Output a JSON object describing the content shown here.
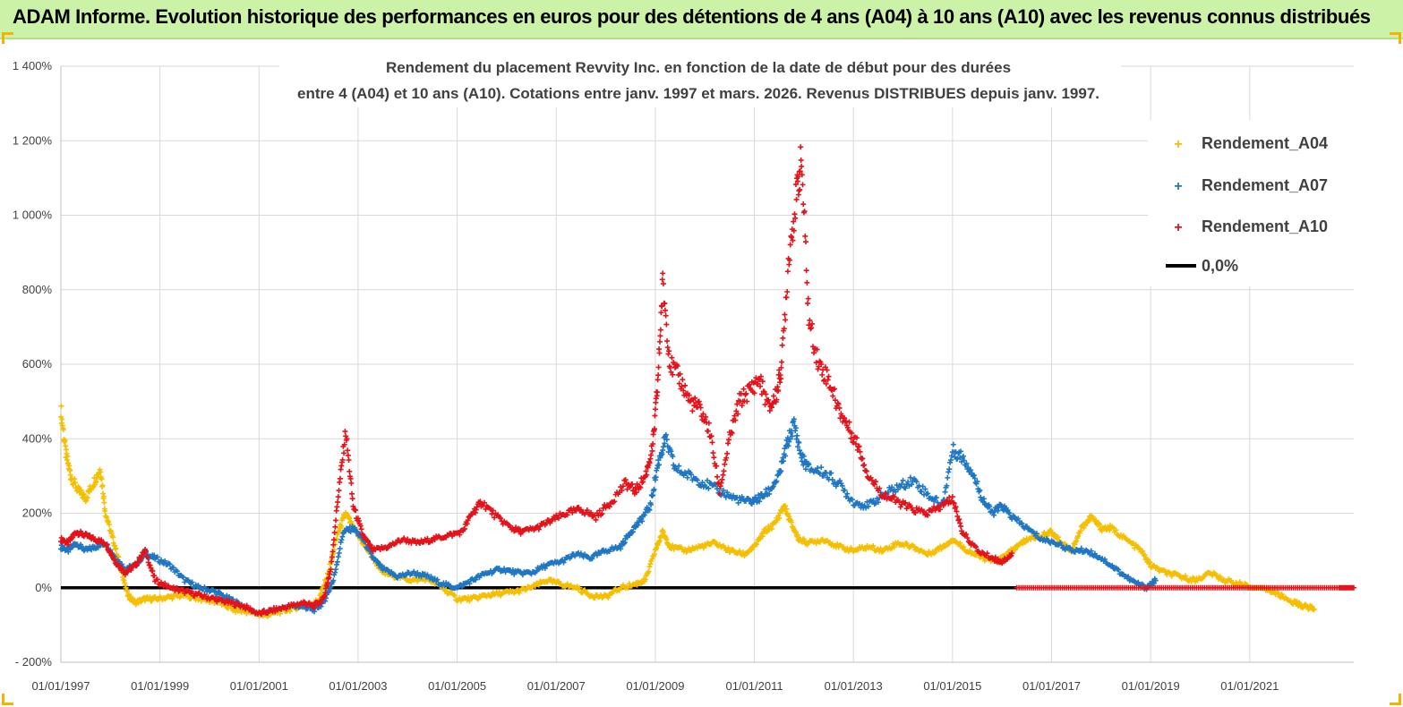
{
  "header": {
    "title": "ADAM Informe. Evolution historique des performances en euros pour des détentions de 4 ans (A04) à 10 ans (A10) avec les revenus connus distribués"
  },
  "chart_data": {
    "type": "scatter",
    "title_lines": [
      "Rendement du placement Revvity Inc. en fonction de la date de début pour des durées",
      "entre 4 (A04) et 10 ans (A10).  Cotations entre janv. 1997 et mars. 2026. Revenus DISTRIBUES depuis janv. 1997."
    ],
    "xlim": [
      1997.0,
      2023.1
    ],
    "ylim": [
      -200,
      1400
    ],
    "ytick_values": [
      -200,
      0,
      200,
      400,
      600,
      800,
      1000,
      1200,
      1400
    ],
    "ytick_labels": [
      "- 200%",
      "0%",
      "200%",
      "400%",
      "600%",
      "800%",
      "1 000%",
      "1 200%",
      "1 400%"
    ],
    "xtick_values": [
      1997,
      1999,
      2001,
      2003,
      2005,
      2007,
      2009,
      2011,
      2013,
      2015,
      2017,
      2019,
      2021
    ],
    "xtick_labels": [
      "01/01/1997",
      "01/01/1999",
      "01/01/2001",
      "01/01/2003",
      "01/01/2005",
      "01/01/2007",
      "01/01/2009",
      "01/01/2011",
      "01/01/2013",
      "01/01/2015",
      "01/01/2017",
      "01/01/2019",
      "01/01/2021"
    ],
    "grid": true,
    "legend_position": "top-right",
    "legend": [
      "Rendement_A04",
      "Rendement_A07",
      "Rendement_A10",
      "0,0%"
    ],
    "series": [
      {
        "name": "Rendement_A04",
        "color": "#f5bf00",
        "x": [
          1997.0,
          1997.1,
          1997.2,
          1997.35,
          1997.5,
          1997.65,
          1997.8,
          1997.9,
          1998.05,
          1998.2,
          1998.35,
          1998.5,
          1998.7,
          1998.9,
          1999.2,
          1999.5,
          1999.8,
          2000.2,
          2000.5,
          2000.8,
          2001.1,
          2001.4,
          2001.7,
          2002.0,
          2002.2,
          2002.4,
          2002.6,
          2002.75,
          2002.9,
          2003.1,
          2003.3,
          2003.5,
          2003.8,
          2004.1,
          2004.4,
          2004.7,
          2005.0,
          2005.3,
          2005.6,
          2005.9,
          2006.2,
          2006.5,
          2006.8,
          2007.1,
          2007.4,
          2007.7,
          2008.0,
          2008.3,
          2008.6,
          2008.8,
          2009.0,
          2009.15,
          2009.3,
          2009.6,
          2009.9,
          2010.2,
          2010.5,
          2010.8,
          2011.0,
          2011.2,
          2011.4,
          2011.6,
          2011.75,
          2011.9,
          2012.1,
          2012.4,
          2012.7,
          2013.0,
          2013.3,
          2013.6,
          2013.9,
          2014.2,
          2014.5,
          2014.8,
          2015.0,
          2015.3,
          2015.6,
          2015.9,
          2016.1,
          2016.3,
          2016.5,
          2016.8,
          2017.0,
          2017.2,
          2017.4,
          2017.6,
          2017.8,
          2018.0,
          2018.2,
          2018.5,
          2018.8,
          2019.0,
          2019.3,
          2019.6,
          2019.9,
          2020.2,
          2020.5,
          2020.8,
          2021.0,
          2021.3,
          2021.6,
          2021.9,
          2022.1,
          2022.3
        ],
        "y": [
          480,
          360,
          300,
          260,
          240,
          280,
          320,
          200,
          130,
          60,
          -20,
          -40,
          -30,
          -30,
          -25,
          -20,
          -30,
          -40,
          -60,
          -65,
          -75,
          -65,
          -55,
          -45,
          -35,
          40,
          150,
          200,
          160,
          120,
          80,
          40,
          30,
          20,
          25,
          0,
          -30,
          -30,
          -20,
          -15,
          -10,
          0,
          20,
          10,
          0,
          -20,
          -25,
          0,
          10,
          20,
          100,
          150,
          110,
          100,
          110,
          120,
          100,
          90,
          110,
          150,
          170,
          220,
          170,
          130,
          120,
          130,
          110,
          100,
          110,
          100,
          120,
          110,
          90,
          110,
          130,
          100,
          80,
          70,
          90,
          110,
          130,
          140,
          150,
          120,
          100,
          160,
          190,
          160,
          160,
          130,
          100,
          60,
          40,
          30,
          20,
          40,
          20,
          10,
          0,
          0,
          -20,
          -40,
          -50,
          -55
        ]
      },
      {
        "name": "Rendement_A07",
        "color": "#1f77c4",
        "x": [
          1997.0,
          1997.15,
          1997.3,
          1997.5,
          1997.7,
          1997.9,
          1998.1,
          1998.3,
          1998.5,
          1998.7,
          1998.9,
          1999.2,
          1999.5,
          1999.8,
          2000.1,
          2000.4,
          2000.7,
          2001.0,
          2001.3,
          2001.6,
          2001.9,
          2002.1,
          2002.3,
          2002.5,
          2002.7,
          2002.9,
          2003.1,
          2003.3,
          2003.5,
          2003.8,
          2004.1,
          2004.4,
          2004.7,
          2005.0,
          2005.3,
          2005.6,
          2005.9,
          2006.2,
          2006.5,
          2006.8,
          2007.1,
          2007.4,
          2007.7,
          2008.0,
          2008.3,
          2008.5,
          2008.7,
          2008.9,
          2009.05,
          2009.2,
          2009.4,
          2009.7,
          2010.0,
          2010.3,
          2010.6,
          2010.9,
          2011.1,
          2011.3,
          2011.5,
          2011.65,
          2011.8,
          2011.95,
          2012.1,
          2012.4,
          2012.7,
          2013.0,
          2013.3,
          2013.6,
          2013.9,
          2014.2,
          2014.5,
          2014.8,
          2015.0,
          2015.2,
          2015.4,
          2015.6,
          2015.8,
          2016.0,
          2016.2,
          2016.5,
          2016.8,
          2017.1,
          2017.4,
          2017.7,
          2018.0,
          2018.3,
          2018.6,
          2018.9,
          2019.1
        ],
        "y": [
          110,
          100,
          120,
          100,
          110,
          120,
          80,
          50,
          60,
          90,
          80,
          60,
          20,
          0,
          -10,
          -30,
          -50,
          -70,
          -60,
          -50,
          -50,
          -60,
          -40,
          20,
          150,
          160,
          130,
          80,
          50,
          30,
          40,
          30,
          10,
          0,
          20,
          40,
          50,
          40,
          40,
          60,
          70,
          90,
          80,
          100,
          110,
          150,
          180,
          220,
          330,
          400,
          320,
          300,
          280,
          260,
          240,
          230,
          240,
          260,
          300,
          380,
          440,
          350,
          320,
          310,
          280,
          230,
          220,
          250,
          270,
          290,
          250,
          220,
          370,
          350,
          310,
          240,
          200,
          220,
          190,
          160,
          130,
          120,
          100,
          100,
          80,
          50,
          20,
          0,
          20
        ]
      },
      {
        "name": "Rendement_A10",
        "color": "#e5121a",
        "x": [
          1997.0,
          1997.15,
          1997.3,
          1997.5,
          1997.7,
          1997.9,
          1998.1,
          1998.3,
          1998.5,
          1998.7,
          1998.9,
          1999.2,
          1999.5,
          1999.8,
          2000.1,
          2000.4,
          2000.7,
          2001.0,
          2001.3,
          2001.6,
          2001.9,
          2002.1,
          2002.3,
          2002.45,
          2002.6,
          2002.75,
          2002.9,
          2003.1,
          2003.3,
          2003.6,
          2003.9,
          2004.2,
          2004.5,
          2004.8,
          2005.1,
          2005.3,
          2005.5,
          2005.8,
          2006.1,
          2006.3,
          2006.6,
          2006.9,
          2007.2,
          2007.5,
          2007.8,
          2008.1,
          2008.4,
          2008.6,
          2008.8,
          2008.95,
          2009.05,
          2009.15,
          2009.3,
          2009.5,
          2009.7,
          2009.9,
          2010.1,
          2010.3,
          2010.5,
          2010.7,
          2010.9,
          2011.1,
          2011.3,
          2011.45,
          2011.55,
          2011.7,
          2011.85,
          2011.95,
          2012.1,
          2012.3,
          2012.5,
          2012.7,
          2012.9,
          2013.1,
          2013.3,
          2013.6,
          2013.9,
          2014.2,
          2014.5,
          2014.8,
          2015.0,
          2015.2,
          2015.5,
          2015.8,
          2016.0,
          2016.2
        ],
        "y": [
          130,
          120,
          150,
          140,
          130,
          120,
          70,
          40,
          60,
          100,
          20,
          0,
          -10,
          -20,
          -30,
          -40,
          -50,
          -70,
          -60,
          -50,
          -40,
          -50,
          -30,
          50,
          250,
          420,
          220,
          140,
          100,
          110,
          130,
          120,
          130,
          140,
          150,
          200,
          230,
          190,
          160,
          150,
          160,
          180,
          200,
          210,
          190,
          230,
          280,
          260,
          300,
          380,
          550,
          820,
          600,
          560,
          500,
          480,
          420,
          260,
          400,
          500,
          530,
          560,
          480,
          520,
          600,
          900,
          1050,
          1150,
          720,
          600,
          560,
          480,
          430,
          380,
          300,
          250,
          230,
          210,
          200,
          220,
          240,
          150,
          100,
          80,
          70,
          90
        ]
      },
      {
        "name": "Rendement_A10_nul",
        "color": "#e5121a",
        "x": [
          2016.3,
          2016.8,
          2017.3,
          2017.8,
          2018.3,
          2018.8,
          2019.3,
          2019.8,
          2020.3,
          2020.8,
          2021.3,
          2021.8,
          2022.3,
          2022.8,
          2023.1
        ],
        "y": [
          0,
          0,
          0,
          0,
          0,
          0,
          0,
          0,
          0,
          0,
          0,
          0,
          0,
          0,
          0
        ]
      }
    ],
    "zero_line": {
      "name": "0,0%",
      "y": 0,
      "color": "#000000",
      "x_start": 1997.0,
      "x_end": 2016.3
    }
  }
}
